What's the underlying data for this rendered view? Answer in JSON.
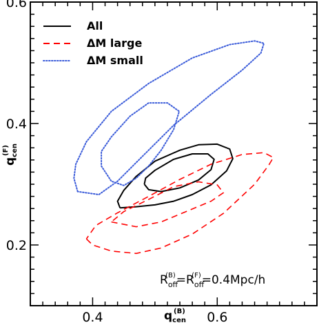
{
  "chart_data": {
    "type": "line",
    "title": "",
    "xlabel": {
      "base": "q",
      "sub": "cen",
      "sup": "(B)"
    },
    "ylabel": {
      "base": "q",
      "sub": "cen",
      "sup": "(F)"
    },
    "xlim": [
      0.3,
      0.76
    ],
    "ylim": [
      0.1,
      0.6
    ],
    "xticks": [
      0.4,
      0.6
    ],
    "xtick_labels": [
      "0.4",
      "0.6"
    ],
    "yticks": [
      0.2,
      0.4,
      0.6
    ],
    "ytick_labels": [
      "0.2",
      "0.4",
      "0.6"
    ],
    "grid": false,
    "legend_position": "top-left",
    "annotation": {
      "base1": "R",
      "sub1": "off",
      "sup1": "(B)",
      "eq": "=",
      "base2": "R",
      "sub2": "off",
      "sup2": "(F)",
      "rest": "=0.4Mpc/h"
    },
    "series": [
      {
        "name": "All",
        "color": "#000000",
        "dash": "solid",
        "contours": [
          {
            "level": "outer",
            "points": [
              [
                0.444,
                0.261
              ],
              [
                0.47,
                0.263
              ],
              [
                0.5,
                0.266
              ],
              [
                0.53,
                0.272
              ],
              [
                0.56,
                0.283
              ],
              [
                0.59,
                0.299
              ],
              [
                0.615,
                0.322
              ],
              [
                0.625,
                0.342
              ],
              [
                0.62,
                0.358
              ],
              [
                0.6,
                0.366
              ],
              [
                0.57,
                0.365
              ],
              [
                0.54,
                0.356
              ],
              [
                0.5,
                0.338
              ],
              [
                0.47,
                0.313
              ],
              [
                0.45,
                0.29
              ],
              [
                0.44,
                0.272
              ],
              [
                0.444,
                0.261
              ]
            ]
          },
          {
            "level": "inner",
            "points": [
              [
                0.483,
                0.3
              ],
              [
                0.49,
                0.291
              ],
              [
                0.51,
                0.288
              ],
              [
                0.54,
                0.294
              ],
              [
                0.57,
                0.307
              ],
              [
                0.59,
                0.324
              ],
              [
                0.595,
                0.341
              ],
              [
                0.585,
                0.35
              ],
              [
                0.56,
                0.35
              ],
              [
                0.53,
                0.341
              ],
              [
                0.5,
                0.323
              ],
              [
                0.485,
                0.31
              ],
              [
                0.483,
                0.3
              ]
            ]
          }
        ]
      },
      {
        "name": "ΔM large",
        "color": "#ff0000",
        "dash": "dashed",
        "contours": [
          {
            "level": "outer",
            "points": [
              [
                0.39,
                0.21
              ],
              [
                0.4,
                0.2
              ],
              [
                0.43,
                0.19
              ],
              [
                0.47,
                0.186
              ],
              [
                0.51,
                0.195
              ],
              [
                0.56,
                0.218
              ],
              [
                0.61,
                0.252
              ],
              [
                0.66,
                0.3
              ],
              [
                0.683,
                0.332
              ],
              [
                0.69,
                0.344
              ],
              [
                0.675,
                0.352
              ],
              [
                0.64,
                0.349
              ],
              [
                0.59,
                0.333
              ],
              [
                0.54,
                0.308
              ],
              [
                0.49,
                0.28
              ],
              [
                0.44,
                0.253
              ],
              [
                0.405,
                0.232
              ],
              [
                0.39,
                0.21
              ]
            ]
          },
          {
            "level": "inner",
            "points": [
              [
                0.43,
                0.238
              ],
              [
                0.47,
                0.23
              ],
              [
                0.51,
                0.238
              ],
              [
                0.55,
                0.255
              ],
              [
                0.59,
                0.272
              ],
              [
                0.61,
                0.286
              ],
              [
                0.6,
                0.299
              ],
              [
                0.57,
                0.304
              ],
              [
                0.53,
                0.296
              ],
              [
                0.49,
                0.275
              ],
              [
                0.45,
                0.255
              ],
              [
                0.43,
                0.238
              ]
            ]
          }
        ]
      },
      {
        "name": "ΔM small",
        "color": "#3a5bd9",
        "dash": "dotted",
        "contours": [
          {
            "level": "outer",
            "points": [
              [
                0.376,
                0.288
              ],
              [
                0.37,
                0.31
              ],
              [
                0.373,
                0.333
              ],
              [
                0.39,
                0.37
              ],
              [
                0.43,
                0.42
              ],
              [
                0.49,
                0.466
              ],
              [
                0.56,
                0.508
              ],
              [
                0.62,
                0.53
              ],
              [
                0.66,
                0.536
              ],
              [
                0.675,
                0.532
              ],
              [
                0.67,
                0.516
              ],
              [
                0.64,
                0.488
              ],
              [
                0.59,
                0.448
              ],
              [
                0.53,
                0.397
              ],
              [
                0.48,
                0.346
              ],
              [
                0.44,
                0.305
              ],
              [
                0.41,
                0.283
              ],
              [
                0.376,
                0.288
              ]
            ]
          },
          {
            "level": "inner",
            "points": [
              [
                0.414,
                0.33
              ],
              [
                0.43,
                0.305
              ],
              [
                0.45,
                0.298
              ],
              [
                0.47,
                0.31
              ],
              [
                0.49,
                0.33
              ],
              [
                0.51,
                0.356
              ],
              [
                0.53,
                0.39
              ],
              [
                0.539,
                0.42
              ],
              [
                0.52,
                0.434
              ],
              [
                0.49,
                0.434
              ],
              [
                0.46,
                0.412
              ],
              [
                0.43,
                0.378
              ],
              [
                0.414,
                0.354
              ],
              [
                0.414,
                0.33
              ]
            ]
          }
        ]
      }
    ]
  }
}
